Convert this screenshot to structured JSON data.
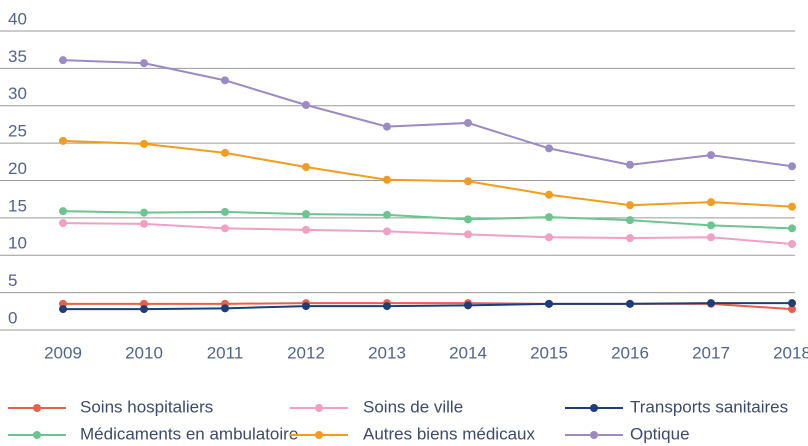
{
  "chart_data": {
    "type": "line",
    "categories": [
      "2009",
      "2010",
      "2011",
      "2012",
      "2013",
      "2014",
      "2015",
      "2016",
      "2017",
      "2018"
    ],
    "series": [
      {
        "name": "Soins hospitaliers",
        "color": "#e8604c",
        "values": [
          3.5,
          3.5,
          3.5,
          3.6,
          3.6,
          3.6,
          3.5,
          3.5,
          3.5,
          2.8
        ]
      },
      {
        "name": "Soins de ville",
        "color": "#f19fc5",
        "values": [
          14.3,
          14.2,
          13.6,
          13.4,
          13.2,
          12.8,
          12.4,
          12.3,
          12.4,
          11.5
        ]
      },
      {
        "name": "Transports sanitaires",
        "color": "#1c3f7a",
        "values": [
          2.8,
          2.8,
          2.9,
          3.2,
          3.2,
          3.3,
          3.5,
          3.5,
          3.6,
          3.6
        ]
      },
      {
        "name": "Médicaments en ambulatoire",
        "color": "#6cc58f",
        "values": [
          15.9,
          15.7,
          15.8,
          15.5,
          15.4,
          14.8,
          15.1,
          14.7,
          14.0,
          13.6
        ]
      },
      {
        "name": "Autres biens médicaux",
        "color": "#f39c1f",
        "values": [
          25.3,
          24.9,
          23.7,
          21.8,
          20.1,
          19.9,
          18.1,
          16.7,
          17.1,
          16.5
        ]
      },
      {
        "name": "Optique",
        "color": "#9b8ac4",
        "values": [
          36.1,
          35.7,
          33.4,
          30.1,
          27.2,
          27.7,
          24.3,
          22.1,
          23.4,
          21.9
        ]
      }
    ],
    "ylim": [
      0,
      40
    ],
    "yticks": [
      0,
      5,
      10,
      15,
      20,
      25,
      30,
      35,
      40
    ],
    "grid": true
  }
}
